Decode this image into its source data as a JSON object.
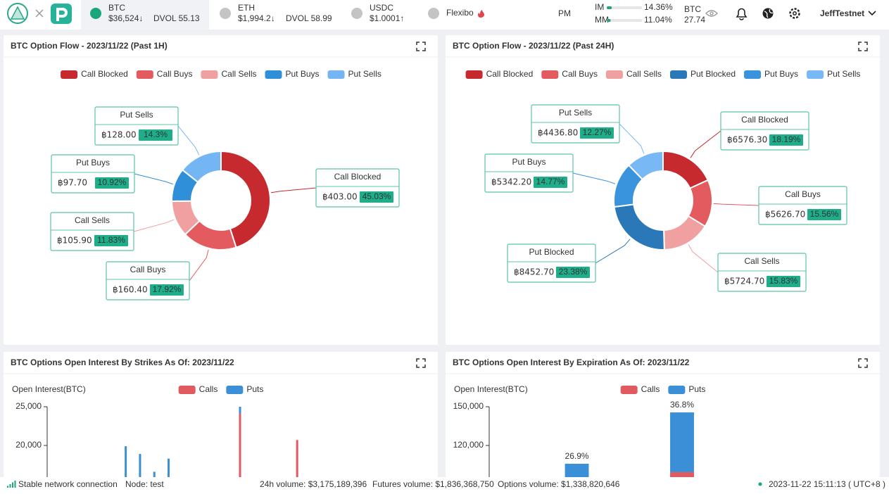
{
  "header": {
    "tickers": [
      {
        "symbol": "BTC",
        "price": "$36,524↓",
        "dvol": "DVOL 55.13",
        "color": "#e0474c"
      },
      {
        "symbol": "ETH",
        "price": "$1,994.2↓",
        "dvol": "DVOL 58.99",
        "color": "#e0474c"
      },
      {
        "symbol": "USDC",
        "price": "$1.0001↑",
        "color": "#1aa57a"
      }
    ],
    "flexibo": "Flexibo",
    "mode": "PM",
    "margins": [
      {
        "label": "IM",
        "value": 14.36,
        "value_label": "14.36%"
      },
      {
        "label": "MM",
        "value": 11.04,
        "value_label": "11.04%"
      }
    ],
    "balance": {
      "currency": "BTC",
      "amount": "27.74"
    },
    "user": "JeffTestnet"
  },
  "panels": [
    {
      "title": "BTC Option Flow - 2023/11/22 (Past 1H)",
      "chart": {
        "type": "donut",
        "categories": [
          "Call Blocked",
          "Call Buys",
          "Call Sells",
          "Put Buys",
          "Put Sells"
        ],
        "colors": [
          "#c62a2f",
          "#e45b5f",
          "#f0a0a0",
          "#2f8fd8",
          "#74b6f4"
        ],
        "values": [
          403.0,
          160.4,
          105.9,
          97.7,
          128.0
        ],
        "value_labels": [
          "฿403.00",
          "฿160.40",
          "฿105.90",
          "฿97.70",
          "฿128.00"
        ],
        "percent_labels": [
          "45.03%",
          "17.92%",
          "11.83%",
          "10.92%",
          "14.3%"
        ]
      }
    },
    {
      "title": "BTC Option Flow - 2023/11/22 (Past 24H)",
      "chart": {
        "type": "donut",
        "categories": [
          "Call Blocked",
          "Call Buys",
          "Call Sells",
          "Put Blocked",
          "Put Buys",
          "Put Sells"
        ],
        "colors": [
          "#c62a2f",
          "#e45b5f",
          "#f0a0a0",
          "#2a78b8",
          "#3a93dd",
          "#78b8f5"
        ],
        "values": [
          6576.3,
          5626.7,
          5724.7,
          8452.7,
          5342.2,
          4436.8
        ],
        "value_labels": [
          "฿6576.30",
          "฿5626.70",
          "฿5724.70",
          "฿8452.70",
          "฿5342.20",
          "฿4436.80"
        ],
        "percent_labels": [
          "18.19%",
          "15.56%",
          "15.83%",
          "23.38%",
          "14.77%",
          "12.27%"
        ]
      }
    },
    {
      "title": "BTC Options Open Interest By Strikes As Of: 2023/11/22",
      "chart": {
        "type": "bar",
        "stacked": true,
        "y_label": "Open Interest(BTC)",
        "categories": [
          null,
          null,
          null,
          null,
          null,
          null,
          null,
          null,
          null,
          null,
          null,
          null,
          null,
          null,
          null,
          null,
          null,
          null,
          null,
          null,
          null,
          null,
          null,
          null,
          null,
          null,
          null
        ],
        "series": [
          {
            "name": "Calls",
            "color": "#e05a5f",
            "values": [
              null,
              null,
              null,
              null,
              null,
              null,
              null,
              null,
              null,
              null,
              null,
              null,
              null,
              24100,
              null,
              null,
              null,
              20700,
              null,
              null,
              null,
              null,
              null,
              null,
              null,
              null,
              null
            ]
          },
          {
            "name": "Puts",
            "color": "#3a8fd6",
            "values": [
              null,
              null,
              null,
              null,
              null,
              19900,
              18900,
              16600,
              18300,
              null,
              null,
              null,
              null,
              900,
              null,
              null,
              null,
              null,
              null,
              null,
              null,
              null,
              null,
              null,
              null,
              null,
              null
            ]
          }
        ],
        "ylim": [
          0,
          25000
        ],
        "yticks": [
          {
            "value": 25000,
            "label": "25,000"
          },
          {
            "value": 20000,
            "label": "20,000"
          }
        ]
      }
    },
    {
      "title": "BTC Options Open Interest By Expiration As Of: 2023/11/22",
      "chart": {
        "type": "bar",
        "stacked": true,
        "y_label": "Open Interest(BTC)",
        "categories": [
          null,
          null,
          null,
          null,
          null,
          null,
          null,
          null,
          null,
          null,
          null
        ],
        "series": [
          {
            "name": "Calls",
            "color": "#e05a5f",
            "values": [
              null,
              null,
              null,
              null,
              null,
              99300,
              null,
              null,
              null,
              null,
              null
            ]
          },
          {
            "name": "Puts",
            "color": "#3a8fd6",
            "values": [
              null,
              null,
              105800,
              null,
              null,
              46300,
              null,
              null,
              null,
              null,
              null
            ]
          }
        ],
        "percent_labels": [
          null,
          null,
          "26.9%",
          null,
          null,
          "36.8%",
          null,
          null,
          null,
          null,
          null
        ],
        "ylim": [
          0,
          150000
        ],
        "yticks": [
          {
            "value": 150000,
            "label": "150,000"
          },
          {
            "value": 120000,
            "label": "120,000"
          }
        ]
      }
    }
  ],
  "status": {
    "network": "Stable network connection",
    "node": "Node: test",
    "volume_24h": "24h volume: $3,175,189,396",
    "futures_volume": "Futures volume: $1,836,368,750",
    "options_volume": "Options volume: $1,338,820,646",
    "time": "2023-11-22 15:11:13 ( UTC+8 )"
  }
}
